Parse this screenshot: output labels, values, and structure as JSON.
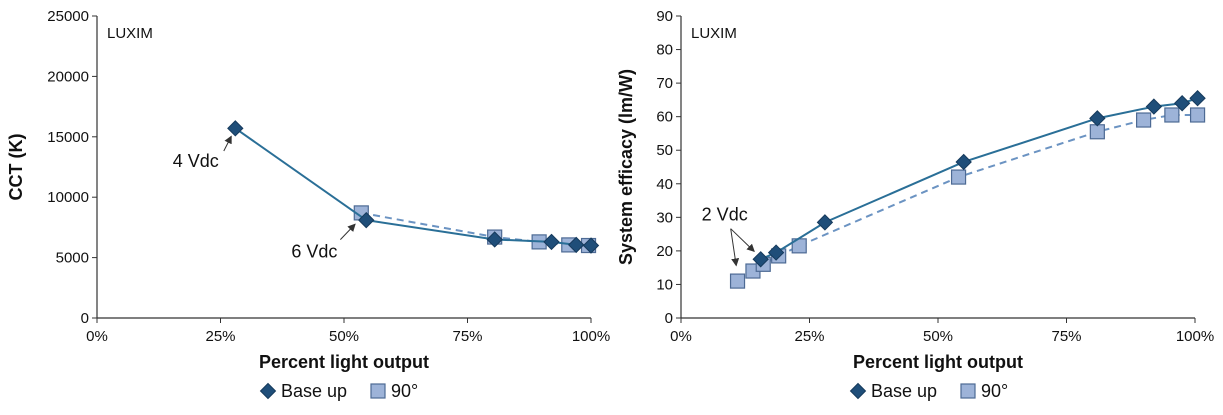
{
  "colors": {
    "base_up_line": "#2a6f97",
    "base_up_marker": "#1f4e79",
    "ninety_line": "#6b93c2",
    "ninety_marker": "#9db3d8",
    "axis": "#333333"
  },
  "chart_data": [
    {
      "type": "line",
      "ylabel": "CCT (K)",
      "xlabel": "Percent light output",
      "brand_label": "LUXIM",
      "xlim": [
        0,
        100
      ],
      "ylim": [
        0,
        25000
      ],
      "x_ticks": [
        0,
        25,
        50,
        75,
        100
      ],
      "x_tick_labels": [
        "0%",
        "25%",
        "50%",
        "75%",
        "100%"
      ],
      "y_ticks": [
        0,
        5000,
        10000,
        15000,
        20000,
        25000
      ],
      "y_tick_labels": [
        "0",
        "5000",
        "10000",
        "15000",
        "20000",
        "25000"
      ],
      "grid": false,
      "series": [
        {
          "name": "Base up",
          "marker": "diamond",
          "line": "solid",
          "x": [
            28,
            54.5,
            80.5,
            92,
            97,
            100
          ],
          "y": [
            15700,
            8100,
            6500,
            6300,
            6050,
            6000
          ]
        },
        {
          "name": "90°",
          "marker": "square",
          "line": "dashed",
          "x": [
            53.5,
            80.5,
            89.5,
            95.5,
            99.5
          ],
          "y": [
            8700,
            6700,
            6300,
            6050,
            6000
          ]
        }
      ],
      "annotations": [
        {
          "text": "4 Vdc",
          "x": 20,
          "y": 12500,
          "arrow_to": [
            28,
            15700
          ]
        },
        {
          "text": "6 Vdc",
          "x": 44,
          "y": 5000,
          "arrow_to": [
            53.5,
            8300
          ]
        }
      ]
    },
    {
      "type": "line",
      "ylabel": "System efficacy (lm/W)",
      "xlabel": "Percent light output",
      "brand_label": "LUXIM",
      "xlim": [
        0,
        100
      ],
      "ylim": [
        0,
        90
      ],
      "x_ticks": [
        0,
        25,
        50,
        75,
        100
      ],
      "x_tick_labels": [
        "0%",
        "25%",
        "50%",
        "75%",
        "100%"
      ],
      "y_ticks": [
        0,
        10,
        20,
        30,
        40,
        50,
        60,
        70,
        80,
        90
      ],
      "y_tick_labels": [
        "0",
        "10",
        "20",
        "30",
        "40",
        "50",
        "60",
        "70",
        "80",
        "90"
      ],
      "grid": false,
      "series": [
        {
          "name": "Base up",
          "marker": "diamond",
          "line": "solid",
          "x": [
            15.5,
            18.5,
            28,
            55,
            81,
            92,
            97.5,
            100.5
          ],
          "y": [
            17.5,
            19.5,
            28.5,
            46.5,
            59.5,
            63,
            64,
            65.5
          ]
        },
        {
          "name": "90°",
          "marker": "square",
          "line": "dashed",
          "x": [
            11,
            14,
            16,
            19,
            23,
            54,
            81,
            90,
            95.5,
            100.5
          ],
          "y": [
            11,
            14,
            16,
            18.5,
            21.5,
            42,
            55.5,
            59,
            60.5,
            60.5
          ]
        }
      ],
      "annotations": [
        {
          "text": "2 Vdc",
          "x": 8.5,
          "y": 29,
          "arrow_to": [
            [
              11,
              13
            ],
            [
              15.5,
              18
            ]
          ]
        }
      ]
    }
  ],
  "legend": {
    "placement": "bottom",
    "items": [
      {
        "label": "Base up",
        "marker": "diamond"
      },
      {
        "label": "90°",
        "marker": "square"
      }
    ]
  }
}
